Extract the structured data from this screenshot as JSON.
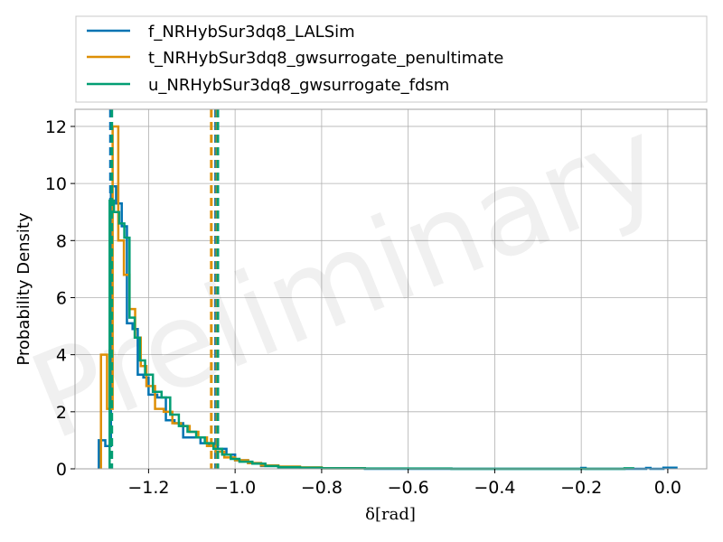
{
  "chart_data": {
    "type": "histogram",
    "xlabel": "δ[rad]",
    "ylabel": "Probability Density",
    "xlim": [
      -1.37,
      0.09
    ],
    "ylim": [
      0,
      12.6
    ],
    "xticks": [
      -1.2,
      -1.0,
      -0.8,
      -0.6,
      -0.4,
      -0.2,
      0.0
    ],
    "xtick_labels": [
      "−1.2",
      "−1.0",
      "−0.8",
      "−0.6",
      "−0.4",
      "−0.2",
      "0.0"
    ],
    "yticks": [
      0,
      2,
      4,
      6,
      8,
      10,
      12
    ],
    "ytick_labels": [
      "0",
      "2",
      "4",
      "6",
      "8",
      "10",
      "12"
    ],
    "grid": true,
    "legend_position": "top",
    "watermark": "Preliminary",
    "series": [
      {
        "name": "f_NRHybSur3dq8_LALSim",
        "color": "#0173b2",
        "vlines": [
          -1.288,
          -1.045
        ],
        "bin_edges": [
          -1.315,
          -1.3,
          -1.287,
          -1.275,
          -1.262,
          -1.25,
          -1.237,
          -1.225,
          -1.212,
          -1.2,
          -1.18,
          -1.16,
          -1.14,
          -1.12,
          -1.1,
          -1.08,
          -1.06,
          -1.04,
          -1.02,
          -1.0,
          -0.97,
          -0.94,
          -0.9,
          -0.85,
          -0.8,
          -0.7,
          -0.2,
          -0.19,
          -0.05,
          -0.04,
          -0.01,
          0.02
        ],
        "values": [
          1.0,
          0.8,
          9.9,
          9.3,
          8.5,
          5.1,
          4.9,
          3.3,
          3.2,
          2.6,
          2.5,
          1.7,
          1.6,
          1.1,
          1.1,
          0.9,
          0.8,
          0.7,
          0.5,
          0.3,
          0.2,
          0.1,
          0.06,
          0.04,
          0.02,
          0.0,
          0.03,
          0.0,
          0.03,
          0.0,
          0.04
        ]
      },
      {
        "name": "t_NRHybSur3dq8_gwsurrogate_penultimate",
        "color": "#de8f05",
        "vlines": [
          -1.055,
          -1.042
        ],
        "bin_edges": [
          -1.31,
          -1.296,
          -1.283,
          -1.27,
          -1.257,
          -1.244,
          -1.231,
          -1.218,
          -1.205,
          -1.185,
          -1.165,
          -1.145,
          -1.125,
          -1.105,
          -1.085,
          -1.065,
          -1.045,
          -1.025,
          -1.0,
          -0.97,
          -0.94,
          -0.9,
          -0.85,
          -0.8,
          -0.7
        ],
        "values": [
          4.0,
          2.1,
          12.0,
          8.0,
          6.8,
          5.6,
          4.6,
          3.6,
          2.9,
          2.1,
          2.0,
          1.6,
          1.5,
          1.3,
          1.1,
          0.8,
          0.6,
          0.4,
          0.3,
          0.2,
          0.12,
          0.08,
          0.05,
          0.02
        ]
      },
      {
        "name": "u_NRHybSur3dq8_gwsurrogate_fdsm",
        "color": "#029e73",
        "vlines": [
          -1.285,
          -1.04
        ],
        "bin_edges": [
          -1.29,
          -1.28,
          -1.268,
          -1.256,
          -1.244,
          -1.232,
          -1.22,
          -1.208,
          -1.19,
          -1.17,
          -1.15,
          -1.13,
          -1.11,
          -1.09,
          -1.07,
          -1.05,
          -1.03,
          -1.01,
          -0.99,
          -0.96,
          -0.93,
          -0.9,
          -0.85,
          -0.8,
          -0.7,
          -0.5,
          -0.1,
          -0.08
        ],
        "values": [
          9.4,
          9.0,
          8.6,
          8.1,
          5.3,
          4.6,
          3.8,
          3.3,
          2.7,
          2.5,
          1.9,
          1.5,
          1.3,
          1.1,
          0.9,
          0.7,
          0.5,
          0.35,
          0.25,
          0.18,
          0.1,
          0.06,
          0.04,
          0.02,
          0.01,
          0.0,
          0.02
        ]
      }
    ]
  }
}
